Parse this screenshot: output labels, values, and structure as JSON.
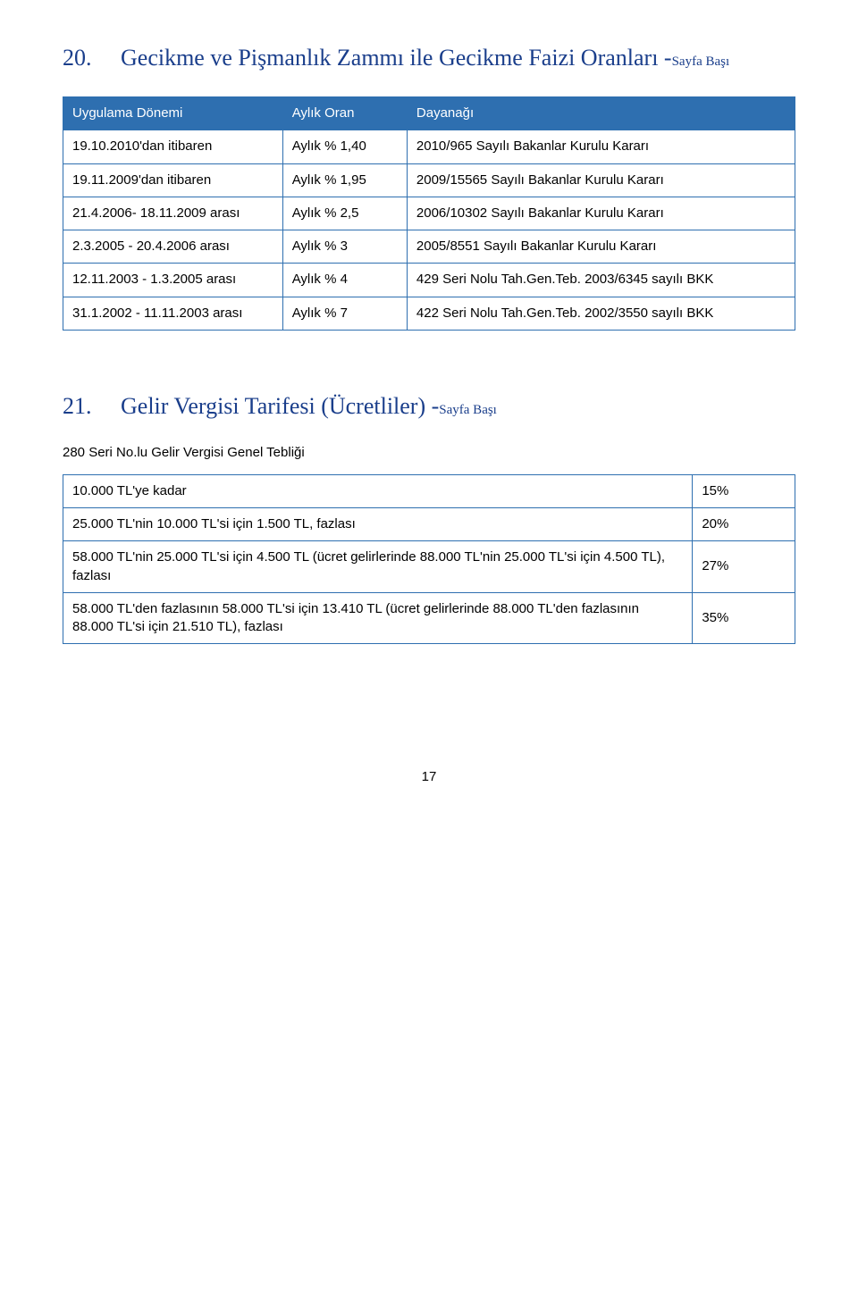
{
  "section20": {
    "number": "20.",
    "title": "Gecikme ve Pişmanlık Zammı ile Gecikme Faizi Oranları -",
    "link_text": "Sayfa Başı",
    "heading_color": "#1a3e8b",
    "heading_fontsize": 26,
    "link_fontsize": 15,
    "table": {
      "border_color": "#2e6fb0",
      "header_bg": "#2e6fb0",
      "header_text_color": "#ffffff",
      "body_text_color": "#000000",
      "col_widths": [
        "30%",
        "17%",
        "53%"
      ],
      "columns": [
        "Uygulama Dönemi",
        "Aylık Oran",
        "Dayanağı"
      ],
      "rows": [
        [
          "19.10.2010'dan itibaren",
          "Aylık % 1,40",
          "2010/965 Sayılı Bakanlar Kurulu Kararı"
        ],
        [
          "19.11.2009'dan itibaren",
          "Aylık % 1,95",
          "2009/15565 Sayılı Bakanlar Kurulu Kararı"
        ],
        [
          "21.4.2006- 18.11.2009 arası",
          "Aylık % 2,5",
          "2006/10302 Sayılı Bakanlar Kurulu Kararı"
        ],
        [
          "2.3.2005 - 20.4.2006 arası",
          "Aylık % 3",
          "2005/8551 Sayılı Bakanlar Kurulu Kararı"
        ],
        [
          "12.11.2003 - 1.3.2005 arası",
          "Aylık % 4",
          "429 Seri Nolu Tah.Gen.Teb. 2003/6345 sayılı BKK"
        ],
        [
          "31.1.2002 - 11.11.2003 arası",
          "Aylık % 7",
          "422 Seri Nolu Tah.Gen.Teb. 2002/3550 sayılı BKK"
        ]
      ]
    }
  },
  "section21": {
    "number": "21.",
    "title": "Gelir Vergisi Tarifesi (Ücretliler) -",
    "link_text": "Sayfa Başı",
    "heading_color": "#1a3e8b",
    "heading_fontsize": 26,
    "link_fontsize": 15,
    "subheading": "280 Seri No.lu Gelir Vergisi Genel Tebliği",
    "table": {
      "border_color": "#2e6fb0",
      "body_text_color": "#000000",
      "col_widths": [
        "86%",
        "14%"
      ],
      "rows": [
        [
          "10.000 TL'ye kadar",
          "15%"
        ],
        [
          " 25.000 TL'nin 10.000 TL'si için 1.500 TL, fazlası",
          "20%"
        ],
        [
          " 58.000 TL'nin 25.000 TL'si için 4.500 TL (ücret gelirlerinde 88.000 TL'nin 25.000 TL'si için 4.500 TL), fazlası",
          "27%"
        ],
        [
          "58.000 TL'den fazlasının 58.000 TL'si için 13.410 TL (ücret gelirlerinde 88.000 TL'den fazlasının 88.000 TL'si için 21.510 TL), fazlası",
          "35%"
        ]
      ]
    }
  },
  "page_number": "17"
}
